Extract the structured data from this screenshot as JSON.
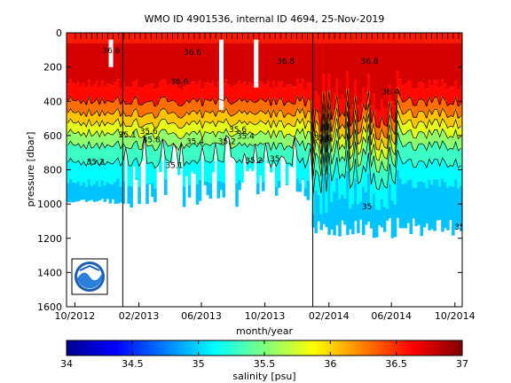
{
  "chart_data": {
    "type": "heatmap",
    "title": "WMO ID 4901536, internal ID 4694, 25-Nov-2019",
    "xlabel": "month/year",
    "ylabel": "pressure [dbar]",
    "x_ticks": [
      "10/2012",
      "02/2013",
      "06/2013",
      "10/2013",
      "02/2014",
      "06/2014",
      "10/2014"
    ],
    "y_ticks": [
      0,
      200,
      400,
      600,
      800,
      1000,
      1200,
      1400,
      1600
    ],
    "ylim": [
      0,
      1600
    ],
    "y_reversed": true,
    "colorbar": {
      "label": "salinity [psu]",
      "min": 34,
      "max": 37,
      "ticks": [
        34,
        34.5,
        35,
        35.5,
        36,
        36.5,
        37
      ],
      "colormap": "jet"
    },
    "x_time_range": [
      "2012-09-15",
      "2014-10-15"
    ],
    "vertical_lines": [
      "2013-01-01",
      "2014-01-01"
    ],
    "contour_labels": [
      {
        "text": "35.1",
        "date": "2013-01-10",
        "p": 610
      },
      {
        "text": "35.6",
        "date": "2013-02-20",
        "p": 590
      },
      {
        "text": "35.8",
        "date": "2013-02-25",
        "p": 640
      },
      {
        "text": "35.2",
        "date": "2012-11-10",
        "p": 770
      },
      {
        "text": "35.1",
        "date": "2013-04-10",
        "p": 790
      },
      {
        "text": "35.4",
        "date": "2013-05-20",
        "p": 650
      },
      {
        "text": "35.2",
        "date": "2013-07-20",
        "p": 650
      },
      {
        "text": "35.6",
        "date": "2013-08-10",
        "p": 580
      },
      {
        "text": "35.4",
        "date": "2013-08-25",
        "p": 620
      },
      {
        "text": "35.2",
        "date": "2013-09-10",
        "p": 760
      },
      {
        "text": "35",
        "date": "2013-10-20",
        "p": 750
      },
      {
        "text": "36.6",
        "date": "2013-04-20",
        "p": 300
      },
      {
        "text": "36.6",
        "date": "2012-12-10",
        "p": 120
      },
      {
        "text": "36.6",
        "date": "2013-05-15",
        "p": 130
      },
      {
        "text": "36.8",
        "date": "2013-11-10",
        "p": 180
      },
      {
        "text": "35.6",
        "date": "2014-01-20",
        "p": 630
      },
      {
        "text": "36.4",
        "date": "2014-05-30",
        "p": 360
      },
      {
        "text": "36.8",
        "date": "2014-04-20",
        "p": 180
      },
      {
        "text": "35",
        "date": "2014-04-15",
        "p": 1030
      },
      {
        "text": "35",
        "date": "2014-10-10",
        "p": 1150
      }
    ]
  }
}
